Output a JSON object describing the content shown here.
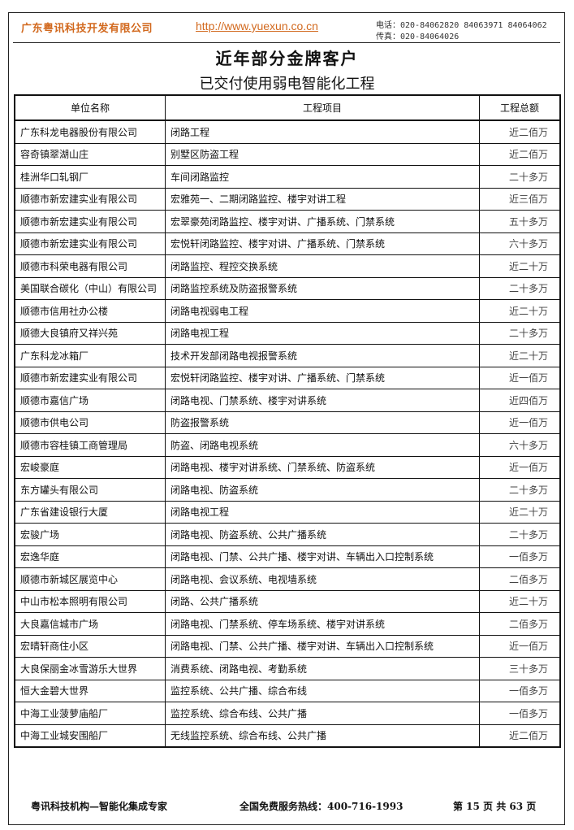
{
  "header": {
    "company": "广东粤讯科技开发有限公司",
    "url": "http://www.yuexun.co.cn",
    "phone": "电话：020-84062820 84063971 84064062",
    "fax": "传真：020-84064026"
  },
  "title": "近年部分金牌客户",
  "subtitle": "已交付使用弱电智能化工程",
  "table": {
    "headers": [
      "单位名称",
      "工程项目",
      "工程总额"
    ],
    "rows": [
      [
        "广东科龙电器股份有限公司",
        "闭路工程",
        "近二佰万"
      ],
      [
        "容奇镇翠湖山庄",
        "别墅区防盗工程",
        "近二佰万"
      ],
      [
        "桂洲华口轧钢厂",
        "车间闭路监控",
        "二十多万"
      ],
      [
        "顺德市新宏建实业有限公司",
        "宏雅苑一、二期闭路监控、楼宇对讲工程",
        "近三佰万"
      ],
      [
        "顺德市新宏建实业有限公司",
        "宏翠豪苑闭路监控、楼宇对讲、广播系统、门禁系统",
        "五十多万"
      ],
      [
        "顺德市新宏建实业有限公司",
        "宏悦轩闭路监控、楼宇对讲、广播系统、门禁系统",
        "六十多万"
      ],
      [
        "顺德市科荣电器有限公司",
        "闭路监控、程控交换系统",
        "近二十万"
      ],
      [
        "美国联合碳化（中山）有限公司",
        "闭路监控系统及防盗报警系统",
        "二十多万"
      ],
      [
        "顺德市信用社办公楼",
        "闭路电视弱电工程",
        "近二十万"
      ],
      [
        "顺德大良镇府又祥兴苑",
        "闭路电视工程",
        "二十多万"
      ],
      [
        "广东科龙冰箱厂",
        "技术开发部闭路电视报警系统",
        "近二十万"
      ],
      [
        "顺德市新宏建实业有限公司",
        "宏悦轩闭路监控、楼宇对讲、广播系统、门禁系统",
        "近一佰万"
      ],
      [
        "顺德市嘉信广场",
        "闭路电视、门禁系统、楼宇对讲系统",
        "近四佰万"
      ],
      [
        "顺德市供电公司",
        "防盗报警系统",
        "近一佰万"
      ],
      [
        "顺德市容桂镇工商管理局",
        "防盗、闭路电视系统",
        "六十多万"
      ],
      [
        "宏峻豪庭",
        "闭路电视、楼宇对讲系统、门禁系统、防盗系统",
        "近一佰万"
      ],
      [
        "东方罐头有限公司",
        "闭路电视、防盗系统",
        "二十多万"
      ],
      [
        "广东省建设银行大厦",
        "闭路电视工程",
        "近二十万"
      ],
      [
        "宏骏广场",
        "闭路电视、防盗系统、公共广播系统",
        "二十多万"
      ],
      [
        "宏逸华庭",
        "闭路电视、门禁、公共广播、楼宇对讲、车辆出入口控制系统",
        "一佰多万"
      ],
      [
        "顺德市新城区展览中心",
        "闭路电视、会议系统、电视墙系统",
        "二佰多万"
      ],
      [
        "中山市松本照明有限公司",
        "闭路、公共广播系统",
        "近二十万"
      ],
      [
        "大良嘉信城市广场",
        "闭路电视、门禁系统、停车场系统、楼宇对讲系统",
        "二佰多万"
      ],
      [
        "宏晴轩商住小区",
        "闭路电视、门禁、公共广播、楼宇对讲、车辆出入口控制系统",
        "近一佰万"
      ],
      [
        "大良保丽金冰雪游乐大世界",
        "消费系统、闭路电视、考勤系统",
        "三十多万"
      ],
      [
        "恒大金碧大世界",
        "监控系统、公共广播、综合布线",
        "一佰多万"
      ],
      [
        "中海工业菠萝庙船厂",
        "监控系统、综合布线、公共广播",
        "一佰多万"
      ],
      [
        "中海工业城安围船厂",
        "无线监控系统、综合布线、公共广播",
        "近二佰万"
      ]
    ]
  },
  "footer": {
    "left": "粤讯科技机构—智能化集成专家",
    "center": "全国免费服务热线：400-716-1993",
    "right": "第 15 页 共 63 页"
  }
}
